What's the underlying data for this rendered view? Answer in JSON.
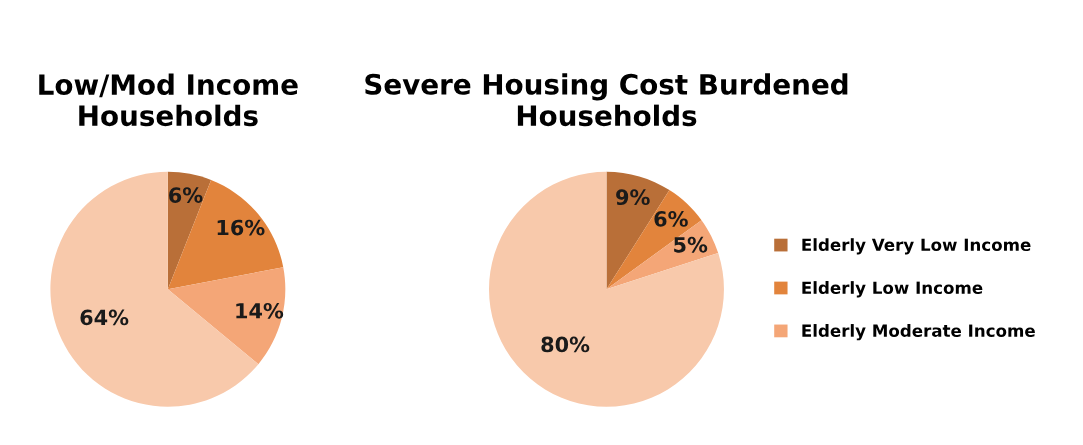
{
  "chart_data": [
    {
      "type": "pie",
      "title": "Low/Mod Income\nHouseholds",
      "categories": [
        null,
        null,
        null,
        null
      ],
      "values": [
        6,
        16,
        14,
        64
      ],
      "value_labels": [
        "6%",
        "16%",
        "14%",
        "64%"
      ],
      "colors": [
        "#b96f38",
        "#e2843c",
        "#f4a677",
        "#f8c9ab"
      ],
      "legend": false
    },
    {
      "type": "pie",
      "title": "Severe Housing Cost Burdened\nHouseholds",
      "categories": [
        "Elderly Very Low Income",
        "Elderly Low Income",
        "Elderly Moderate Income",
        null
      ],
      "values": [
        9,
        6,
        5,
        80
      ],
      "value_labels": [
        "9%",
        "6%",
        "5%",
        "80%"
      ],
      "colors": [
        "#b96f38",
        "#e2843c",
        "#f4a677",
        "#f8c9ab"
      ],
      "legend": "right"
    }
  ]
}
